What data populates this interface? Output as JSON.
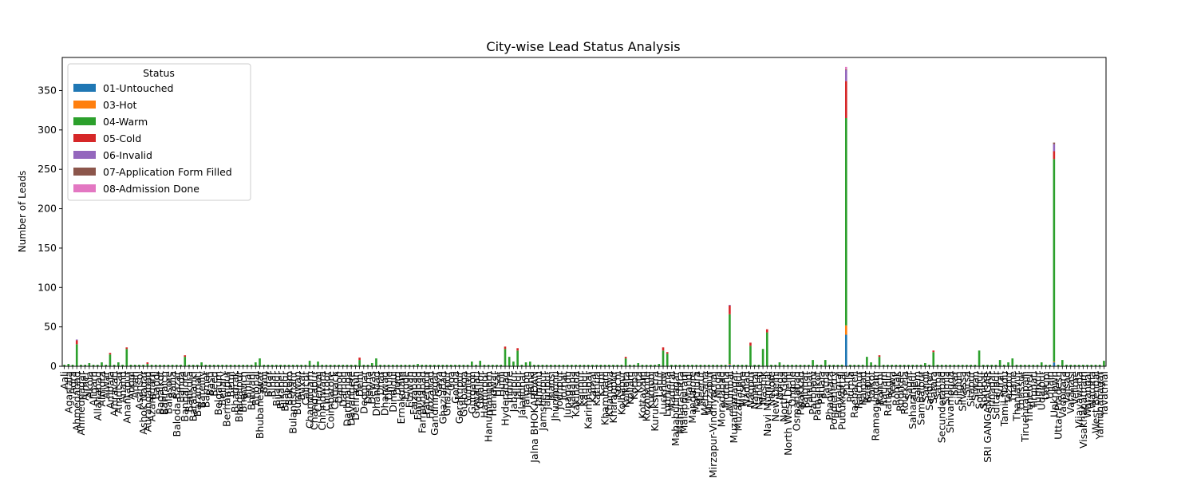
{
  "chart_data": {
    "type": "bar",
    "stacked": true,
    "title": "City-wise Lead Status Analysis",
    "xlabel": "",
    "ylabel": "Number of Leads",
    "ylim": [
      0,
      392
    ],
    "yticks": [
      0,
      50,
      100,
      150,
      200,
      250,
      300,
      350
    ],
    "grid": false,
    "legend": {
      "title": "Status",
      "placement": "top-left"
    },
    "categories": [
      "Aali",
      "Agartala",
      "Agra",
      "Ahmedabad",
      "Ahmednagar",
      "Ajmer",
      "Akola",
      "Aligarh",
      "Allahabad",
      "Almora",
      "Alwar",
      "Ambala",
      "Amravati",
      "Amritsar",
      "Anand",
      "Anantapur",
      "Angul",
      "Arrah",
      "Asansol",
      "Ashok Nagar",
      "Aurangabad",
      "Azamgarh",
      "Baddi",
      "Bagalkot",
      "Bahraich",
      "Balasore",
      "Ballia",
      "Baloda Bazar",
      "Banda",
      "Bangalore",
      "Bankura",
      "Barabanki",
      "Baramati",
      "Bareilly",
      "Barmer",
      "Basti",
      "Beed",
      "Belgaum",
      "Bellary",
      "Berhampur",
      "Betul",
      "Bhadrak",
      "Bhagalpur",
      "Bharuch",
      "Bhilai",
      "Bhiwani",
      "Bhopal",
      "Bhubaneswar",
      "Bhuj",
      "Bidar",
      "Bihar",
      "Bijapur",
      "Bikaner",
      "Bilaspur",
      "Bokaro",
      "Bulandshahr",
      "Burdwan",
      "Buxar",
      "Calicut",
      "Chandigarh",
      "Chandrapur",
      "Chennai",
      "Chhindwara",
      "Chittoor",
      "Coimbatore",
      "Cuttack",
      "Dahod",
      "Damoh",
      "Darbhanga",
      "Davangere",
      "Dehradun",
      "Delhi",
      "Deoghar",
      "Deoria",
      "Dewas",
      "Dhanbad",
      "Dhar",
      "Dharwad",
      "Dhule",
      "Dindigul",
      "Durg",
      "Ernakulam",
      "Erode",
      "Etawah",
      "Faizabad",
      "Faridabad",
      "Farrukhabad",
      "Fatehpur",
      "Firozabad",
      "Gandhinagar",
      "Gaya",
      "Ghaziabad",
      "Ghazipur",
      "Goa",
      "Gonda",
      "Gorakhpur",
      "Gulbarga",
      "Guntur",
      "Gurgaon",
      "Guwahati",
      "Gwalior",
      "Hamirpur",
      "Hanumangarh",
      "Haridwar",
      "Hisar",
      "Hubli",
      "Hyderabad",
      "Indore",
      "Jabalpur",
      "Jaipur",
      "Jalandhar",
      "Jalgaon",
      "Jalna",
      "Jalna BHOKARDAN",
      "Jammu",
      "Jamshedpur",
      "Jaunpur",
      "Jhansi",
      "Jhunjhunu",
      "Jodhpur",
      "Jorhat",
      "Junagadh",
      "Kadapa",
      "Kakinada",
      "Kannur",
      "Kanpur",
      "Karimnagar",
      "Karnal",
      "Kathua",
      "Katni",
      "Khammam",
      "Khandwa",
      "Kharagpur",
      "Kochi",
      "Kolhapur",
      "Kolkata",
      "Kollam",
      "Korba",
      "Kota",
      "Kottayam",
      "Kozhikode",
      "Kurnool",
      "Kurukshetra",
      "Latur",
      "Lucknow",
      "Ludhiana",
      "Madurai",
      "Mahabubnagar",
      "Maharashtra",
      "Malappuram",
      "Mandi",
      "Mangalore",
      "Mathura",
      "Meerut",
      "Mehsana",
      "Mirzapur",
      "Mirzapur-Vindhyachal",
      "Moga",
      "Moradabad",
      "Morena",
      "Mumbai",
      "Muzaffarnagar",
      "Muzaffarpur",
      "Mysore",
      "Nadiad",
      "Nagpur",
      "Nainital",
      "Nanded",
      "Nashik",
      "Navi Mumbai",
      "Nellore",
      "New Delhi",
      "Noida",
      "North Goa",
      "North West Delhi",
      "Ongole",
      "Osmanabad",
      "Palakkad",
      "Palghar",
      "Panipat",
      "Parbhani",
      "Pathankot",
      "Patiala",
      "Patna",
      "Phagwara",
      "Pondicherry",
      "Prayagraj",
      "Pudukkottai",
      "Pune",
      "Purnia",
      "Raebareli",
      "Raichur",
      "Raigad",
      "Raipur",
      "Rajkot",
      "Ramagundam",
      "Ranchi",
      "Ratlam",
      "Ratnagiri",
      "Rewa",
      "Rohtak",
      "Roorkee",
      "Rourkela",
      "Sagar",
      "Saharanpur",
      "Salem",
      "Sambalpur",
      "Sangli",
      "Sangrur",
      "Satara",
      "Satna",
      "Secunderabad",
      "Shimla",
      "Shivamogga",
      "Sikar",
      "Siliguri",
      "Silvassa",
      "Sirsa",
      "Sitapur",
      "Siwan",
      "Solapur",
      "Sonipat",
      "SRI GANGANAGAR",
      "Srinagar",
      "Sultanpur",
      "Surat",
      "Tamil Nadu",
      "Tezpur",
      "Thane",
      "Thanjavur",
      "Thrissur",
      "Tiruchirappalli",
      "Tirunelveli",
      "Tirupati",
      "Tumkur",
      "Udaipur",
      "Udupi",
      "Ujjain",
      "Unknown",
      "Uttar Pradesh",
      "Vadodara",
      "Valsad",
      "Varanasi",
      "Vellore",
      "Vijayawada",
      "Visakhapatnam",
      "Warangal",
      "Wardha",
      "West Bengal",
      "Yamunanagar",
      "Yavatmal"
    ],
    "series": [
      {
        "name": "01-Untouched",
        "color": "#1f77b4",
        "sparse": {
          "Pune": 40,
          "Unknown": 5,
          "Mumbai": 2
        }
      },
      {
        "name": "03-Hot",
        "color": "#ff7f0e",
        "sparse": {
          "Pune": 12,
          "Mumbai": 1,
          "Unknown": 1
        }
      },
      {
        "name": "04-Warm",
        "color": "#2ca02c",
        "default": 2,
        "sparse": {
          "Ahmedabad": 28,
          "Pune": 263,
          "Unknown": 257,
          "Mumbai": 63,
          "Navi Mumbai": 43,
          "Nagpur": 26,
          "Nashik": 22,
          "Jaipur": 20,
          "Hyderabad": 22,
          "Lucknow": 20,
          "Kolkata": 10,
          "Bangalore": 12,
          "Bhubaneswar": 10,
          "Ambala": 15,
          "Anantapur": 22,
          "Ludhiana": 16,
          "Solapur": 20,
          "Satara": 18,
          "Thane": 10,
          "Indore": 12,
          "Delhi": 8,
          "Chandigarh": 7,
          "Gurgaon": 6,
          "Raipur": 12,
          "Patna": 8,
          "Ranchi": 12,
          "Surat": 8,
          "Vadodara": 8,
          "Dhanbad": 10,
          "Jabalpur": 6,
          "Gwalior": 7,
          "Udaipur": 5,
          "Yavatmal": 7,
          "Parbhani": 8,
          "Aurangabad": 3,
          "Agartala": 3,
          "Bareilly": 5,
          "Jalgaon": 5,
          "Dewas": 4,
          "Faridabad": 3,
          "Noida": 5,
          "Tezpur": 5,
          "Almora": 5,
          "Jalna": 6,
          "Akola": 4,
          "Amritsar": 5,
          "Bhopal": 5,
          "Chennai": 6,
          "Kota": 4,
          "Rajkot": 5,
          "Sangli": 4,
          "Latur": 3
        }
      },
      {
        "name": "05-Cold",
        "color": "#d62728",
        "default": 0,
        "sparse": {
          "Pune": 47,
          "Unknown": 10,
          "Mumbai": 11,
          "Ahmedabad": 5,
          "Navi Mumbai": 4,
          "Nagpur": 4,
          "Jaipur": 3,
          "Hyderabad": 3,
          "Lucknow": 4,
          "Ambala": 2,
          "Bangalore": 2,
          "Anantapur": 2,
          "Ludhiana": 2,
          "Aurangabad": 2,
          "Delhi": 3,
          "Ranchi": 2,
          "Satara": 2,
          "Kolkata": 2
        }
      },
      {
        "name": "06-Invalid",
        "color": "#9467bd",
        "sparse": {
          "Pune": 14,
          "Unknown": 9,
          "Mumbai": 1,
          "Ahmedabad": 1
        }
      },
      {
        "name": "07-Application Form Filled",
        "color": "#8c564b",
        "sparse": {
          "Unknown": 2,
          "Pune": 1
        }
      },
      {
        "name": "08-Admission Done",
        "color": "#e377c2",
        "sparse": {
          "Pune": 3
        }
      }
    ]
  }
}
